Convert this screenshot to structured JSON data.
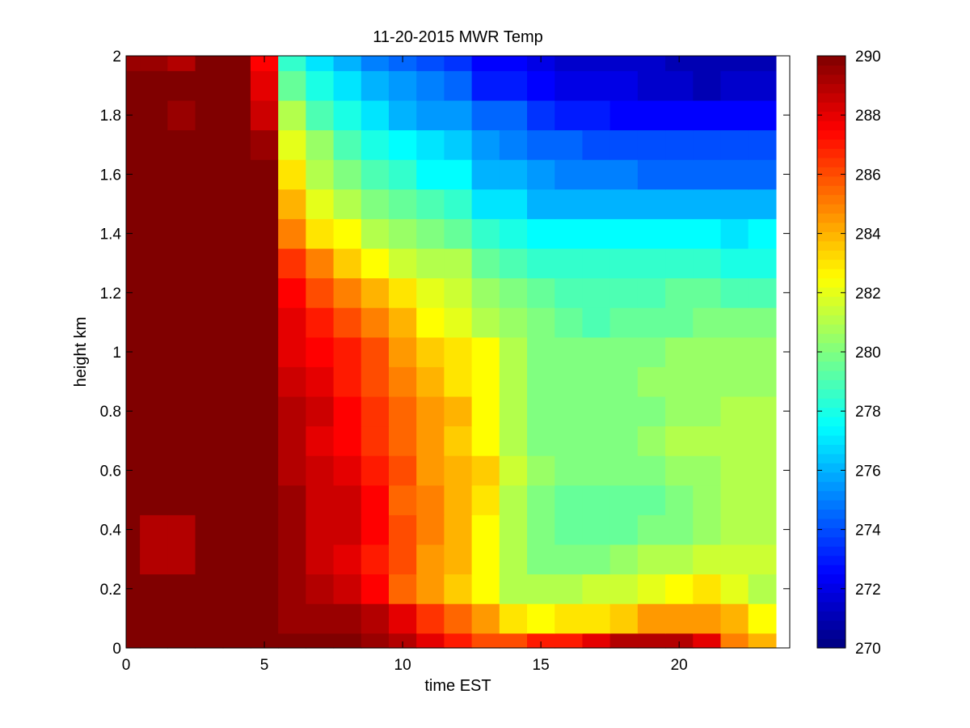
{
  "chart_data": {
    "type": "heatmap",
    "title": "11-20-2015 MWR Temp",
    "xlabel": "time EST",
    "ylabel": "height km",
    "xlim": [
      0,
      24
    ],
    "ylim": [
      0,
      2
    ],
    "x_ticks": [
      0,
      5,
      10,
      15,
      20
    ],
    "x_tick_labels": [
      "0",
      "5",
      "10",
      "15",
      "20"
    ],
    "y_ticks": [
      0,
      0.2,
      0.4,
      0.6,
      0.8,
      1,
      1.2,
      1.4,
      1.6,
      1.8,
      2
    ],
    "y_tick_labels": [
      "0",
      "0.2",
      "0.4",
      "0.6",
      "0.8",
      "1",
      "1.2",
      "1.4",
      "1.6",
      "1.8",
      "2"
    ],
    "colorbar": {
      "min": 270,
      "max": 290,
      "ticks": [
        270,
        272,
        274,
        276,
        278,
        280,
        282,
        284,
        286,
        288,
        290
      ],
      "tick_labels": [
        "270",
        "272",
        "274",
        "276",
        "278",
        "280",
        "282",
        "284",
        "286",
        "288",
        "290"
      ],
      "colormap": "jet"
    },
    "x_edges": [
      0,
      0.5,
      1.5,
      2.5,
      3.5,
      4.5,
      5.5,
      6.5,
      7.5,
      8.5,
      9.5,
      10.5,
      11.5,
      12.5,
      13.5,
      14.5,
      15.5,
      16.5,
      17.5,
      18.5,
      19.5,
      20.5,
      21.5,
      22.5,
      23.5
    ],
    "y_edges": [
      0,
      0.05,
      0.15,
      0.25,
      0.35,
      0.45,
      0.55,
      0.65,
      0.75,
      0.85,
      0.95,
      1.05,
      1.15,
      1.25,
      1.35,
      1.45,
      1.55,
      1.65,
      1.75,
      1.85,
      1.95,
      2.0
    ],
    "z": [
      [
        290,
        290,
        290,
        290,
        290,
        290,
        290,
        290,
        290,
        289.5,
        289,
        288,
        287,
        286,
        286,
        287,
        287,
        288,
        289,
        289,
        289,
        288,
        285,
        284
      ],
      [
        290,
        290,
        290,
        290,
        290,
        290,
        289.5,
        289.5,
        289.5,
        289,
        288,
        286.5,
        285.5,
        284.5,
        283,
        282.5,
        283,
        283,
        283.5,
        284.5,
        284.5,
        284.5,
        284,
        282.5
      ],
      [
        290,
        290,
        290,
        290,
        290,
        290,
        289.5,
        289,
        288.5,
        287.5,
        285.5,
        284.5,
        283.5,
        282.5,
        281,
        281,
        281,
        281.5,
        281.5,
        282,
        282.5,
        283,
        282,
        281
      ],
      [
        290,
        289,
        289,
        290,
        290,
        290,
        289.5,
        288.5,
        288,
        287,
        286,
        284.5,
        284,
        282.5,
        281,
        280,
        280,
        280,
        280.5,
        281,
        281,
        281.5,
        281.5,
        281.5
      ],
      [
        290,
        289,
        289,
        290,
        290,
        290,
        289.5,
        288.5,
        288.5,
        287.5,
        286,
        285,
        284,
        282.5,
        281,
        280,
        279.5,
        279.5,
        279.5,
        280,
        280,
        280.5,
        281,
        281
      ],
      [
        290,
        290,
        290,
        290,
        290,
        290,
        289.5,
        288.5,
        288.5,
        287.5,
        285.5,
        285,
        284,
        283,
        281,
        280,
        279.5,
        279.5,
        279.5,
        279.5,
        280,
        280.5,
        281,
        281
      ],
      [
        290,
        290,
        290,
        290,
        290,
        290,
        289,
        288.5,
        288,
        287,
        286,
        284.5,
        284,
        283.5,
        281.5,
        280.5,
        280,
        280,
        280,
        280,
        280.5,
        280.5,
        281,
        281
      ],
      [
        290,
        290,
        290,
        290,
        290,
        290,
        289,
        288,
        287.5,
        286.5,
        285.5,
        284.5,
        283.5,
        282.5,
        281,
        280,
        280,
        280,
        280,
        280.5,
        281,
        281,
        281,
        281
      ],
      [
        290,
        290,
        290,
        290,
        290,
        290,
        289,
        288.5,
        287.5,
        286.5,
        285.5,
        284.5,
        284,
        282.5,
        281,
        280,
        280,
        280,
        280,
        280,
        280.5,
        280.5,
        281,
        281
      ],
      [
        290,
        290,
        290,
        290,
        290,
        290,
        288.5,
        288,
        287,
        286,
        285,
        284,
        283,
        282.5,
        281,
        280,
        280,
        280,
        280,
        280.5,
        280.5,
        280.5,
        280.5,
        280.5
      ],
      [
        290,
        290,
        290,
        290,
        290,
        290,
        288,
        287.5,
        287,
        286,
        284.5,
        283.5,
        283,
        282.5,
        281,
        280,
        280,
        280,
        280,
        280,
        280.5,
        280.5,
        280.5,
        280.5
      ],
      [
        290,
        290,
        290,
        290,
        290,
        290,
        288,
        287,
        286,
        285,
        284,
        282.5,
        282,
        281,
        280.5,
        280,
        279.5,
        279,
        279.5,
        279.5,
        279.5,
        280,
        280,
        280
      ],
      [
        290,
        290,
        290,
        290,
        290,
        290,
        287.5,
        286,
        285,
        284,
        283,
        282,
        281.5,
        280.5,
        280,
        279.5,
        279,
        279,
        279,
        279,
        279.5,
        279.5,
        279,
        279
      ],
      [
        290,
        290,
        290,
        290,
        290,
        290,
        286.5,
        285,
        283.5,
        282.5,
        281.5,
        281,
        281,
        279.5,
        279,
        278.5,
        278.5,
        278.5,
        278.5,
        278.5,
        278.5,
        278.5,
        278,
        278
      ],
      [
        290,
        290,
        290,
        290,
        290,
        290,
        285,
        283,
        282.5,
        281,
        280.5,
        280,
        279.5,
        278.5,
        278,
        277.5,
        277.5,
        277.5,
        277.5,
        277.5,
        277.5,
        277.5,
        277,
        277.5
      ],
      [
        290,
        290,
        290,
        290,
        290,
        290,
        284,
        282,
        281,
        280,
        279.5,
        279,
        278.5,
        277,
        277,
        276,
        276,
        276,
        276,
        276,
        276,
        276,
        276,
        276
      ],
      [
        290,
        290,
        290,
        290,
        290,
        290,
        283,
        281,
        280,
        279,
        278.5,
        277.5,
        277.5,
        276,
        276,
        275.5,
        275,
        275,
        275,
        274.5,
        274.5,
        274.5,
        274.5,
        274.5
      ],
      [
        290,
        290,
        290,
        290,
        290,
        289.5,
        282,
        280.5,
        279,
        278,
        277.5,
        277,
        276.5,
        275.5,
        275,
        274.5,
        274.5,
        274,
        274,
        274,
        274,
        274,
        274,
        274
      ],
      [
        290,
        290,
        289.5,
        290,
        290,
        288.5,
        281,
        279,
        278,
        277,
        276,
        275.5,
        275.5,
        274.5,
        274.5,
        273.5,
        273,
        273,
        272.5,
        272.5,
        272.5,
        272.5,
        272.5,
        272.5
      ],
      [
        290,
        290,
        290,
        290,
        290,
        288,
        279.5,
        278,
        277,
        276,
        275.5,
        275,
        274.5,
        273,
        273,
        272.5,
        272,
        272,
        272,
        271.5,
        271.5,
        271,
        271.5,
        271.5
      ],
      [
        289.5,
        289.5,
        289,
        290,
        290,
        287.5,
        278.5,
        277,
        276,
        275,
        274.5,
        274,
        273.5,
        272.5,
        272.5,
        272,
        271.5,
        271.5,
        271.5,
        271.5,
        271,
        271,
        271,
        271
      ]
    ]
  }
}
